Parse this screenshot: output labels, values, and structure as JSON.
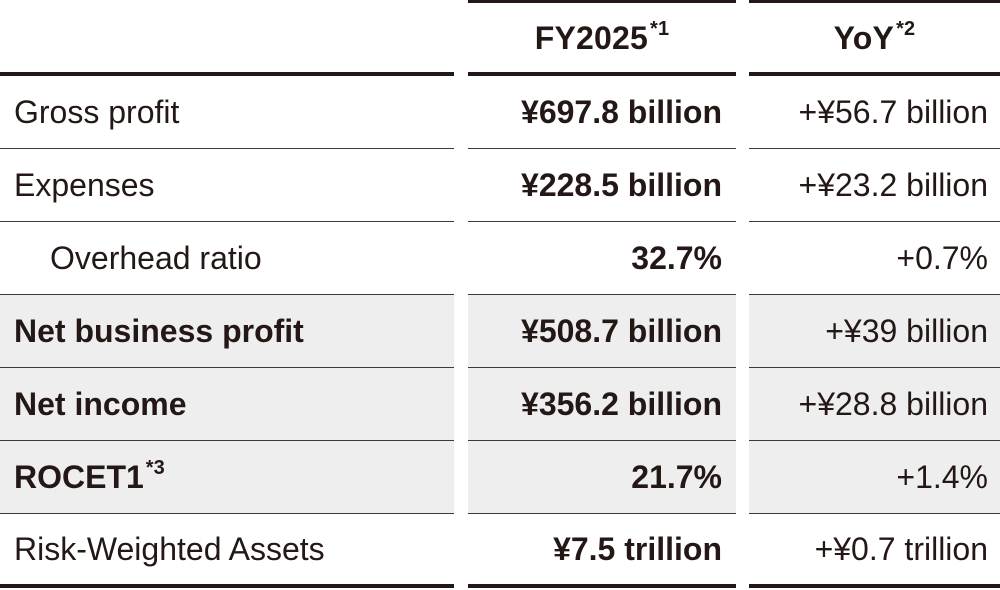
{
  "table": {
    "headers": {
      "label": "",
      "fy": "FY2025",
      "fy_note": "*1",
      "yoy": "YoY",
      "yoy_note": "*2"
    },
    "rows": [
      {
        "label": "Gross profit",
        "note": "",
        "fy": "¥697.8 billion",
        "yoy": "+¥56.7 billion"
      },
      {
        "label": "Expenses",
        "note": "",
        "fy": "¥228.5 billion",
        "yoy": "+¥23.2 billion"
      },
      {
        "label": "Overhead ratio",
        "note": "",
        "fy": "32.7%",
        "yoy": "+0.7%"
      },
      {
        "label": "Net business profit",
        "note": "",
        "fy": "¥508.7 billion",
        "yoy": "+¥39 billion"
      },
      {
        "label": "Net income",
        "note": "",
        "fy": "¥356.2 billion",
        "yoy": "+¥28.8 billion"
      },
      {
        "label": "ROCET1",
        "note": "*3",
        "fy": "21.7%",
        "yoy": "+1.4%"
      },
      {
        "label": "Risk-Weighted Assets",
        "note": "",
        "fy": "¥7.5 trillion",
        "yoy": "+¥0.7 trillion"
      }
    ]
  },
  "colors": {
    "text": "#231815",
    "shade": "#eeeeee",
    "rule": "#231815"
  }
}
